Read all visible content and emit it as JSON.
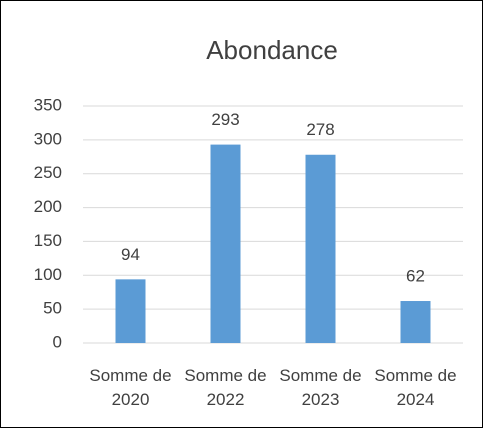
{
  "chart_data": {
    "type": "bar",
    "title": "Abondance",
    "categories": [
      "Somme de 2020",
      "Somme de 2022",
      "Somme de 2023",
      "Somme de 2024"
    ],
    "values": [
      94,
      293,
      278,
      62
    ],
    "color": "#5b9bd5",
    "ylim": [
      0,
      350
    ],
    "yticks": [
      0,
      50,
      100,
      150,
      200,
      250,
      300,
      350
    ],
    "grid": true
  }
}
